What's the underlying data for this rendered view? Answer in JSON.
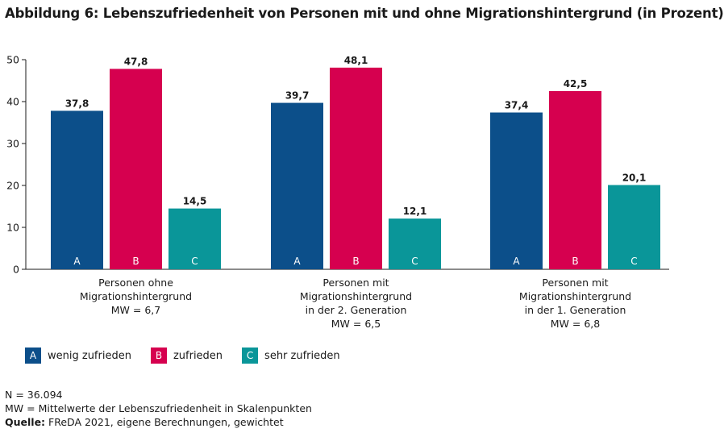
{
  "chart_data": {
    "type": "bar",
    "title": "Abbildung 6: Lebenszufriedenheit von Personen mit und ohne Migrationshintergrund (in Prozent)",
    "ylim": [
      0,
      50
    ],
    "yticks": [
      0,
      10,
      20,
      30,
      40,
      50
    ],
    "categories": [
      [
        "Personen ohne",
        "Migrationshintergrund",
        "MW = 6,7"
      ],
      [
        "Personen mit",
        "Migrationshintergrund",
        "in der 2. Generation",
        "MW = 6,5"
      ],
      [
        "Personen mit",
        "Migrationshintergrund",
        "in der 1. Generation",
        "MW = 6,8"
      ]
    ],
    "series": [
      {
        "letter": "A",
        "name": "wenig zufrieden",
        "color": "#0c4f8a",
        "values": [
          37.8,
          39.7,
          37.4
        ],
        "labels": [
          "37,8",
          "39,7",
          "37,4"
        ]
      },
      {
        "letter": "B",
        "name": "zufrieden",
        "color": "#d6004f",
        "values": [
          47.8,
          48.1,
          42.5
        ],
        "labels": [
          "47,8",
          "48,1",
          "42,5"
        ]
      },
      {
        "letter": "C",
        "name": "sehr zufrieden",
        "color": "#0a9699",
        "values": [
          14.5,
          12.1,
          20.1
        ],
        "labels": [
          "14,5",
          "12,1",
          "20,1"
        ]
      }
    ],
    "grid": false,
    "legend_position": "bottom-left"
  },
  "notes": {
    "n": "N = 36.094",
    "mw": "MW = Mittelwerte der Lebenszufriedenheit in Skalenpunkten",
    "source_key": "Quelle:",
    "source_text": " FReDA 2021, eigene Berechnungen, gewichtet"
  }
}
